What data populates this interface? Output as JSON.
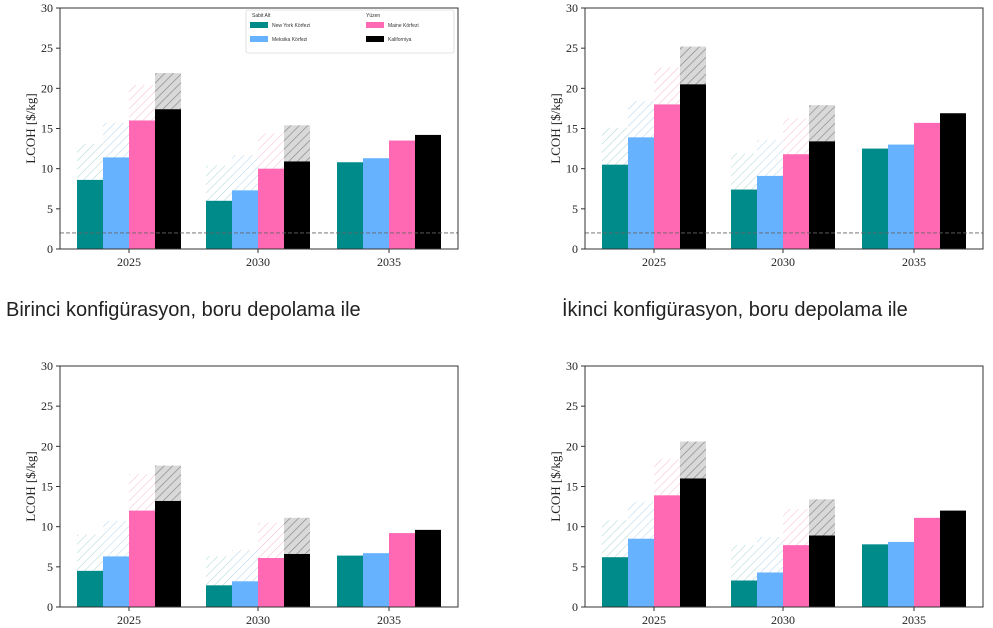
{
  "captions": [
    "Birinci konfigürasyon, boru depolama ile",
    "İkinci konfigürasyon, boru depolama ile"
  ],
  "colors": {
    "new_york": "#008b8b",
    "meksika": "#66b2ff",
    "maine": "#ff69b4",
    "kaliforniya": "#000000",
    "hatch_new_york": "#9fcfcf",
    "hatch_meksika": "#a9cfee",
    "hatch_maine": "#f6b3d0",
    "hatch_kaliforniya": "#8c8c8c",
    "target_line": "#666666"
  },
  "chart_data": [
    {
      "type": "bar",
      "panel": "top-left",
      "categories": [
        "2025",
        "2030",
        "2035"
      ],
      "ylabel": "LCOH [$/kg]",
      "ylim": [
        0,
        30
      ],
      "yticks": [
        "0",
        "5",
        "10",
        "15",
        "20",
        "25",
        "30"
      ],
      "reference_line": 2,
      "legend": {
        "placement": "top-right",
        "group_titles": [
          "Sabit Alt",
          "Yüzen"
        ],
        "entries": [
          "New York Körfezi",
          "Meksika Körfezi",
          "Maine Körfezi",
          "Kaliforniya"
        ]
      },
      "series": [
        {
          "name": "New York Körfezi",
          "values": [
            8.6,
            6.0,
            10.8
          ],
          "upper": [
            13.1,
            10.4,
            null
          ]
        },
        {
          "name": "Meksika Körfezi",
          "values": [
            11.4,
            7.3,
            11.3
          ],
          "upper": [
            15.7,
            11.7,
            null
          ]
        },
        {
          "name": "Maine Körfezi",
          "values": [
            16.0,
            10.0,
            13.5
          ],
          "upper": [
            20.4,
            14.4,
            null
          ]
        },
        {
          "name": "Kaliforniya",
          "values": [
            17.4,
            10.9,
            14.2
          ],
          "upper": [
            21.9,
            15.4,
            null
          ]
        }
      ]
    },
    {
      "type": "bar",
      "panel": "top-right",
      "categories": [
        "2025",
        "2030",
        "2035"
      ],
      "ylabel": "LCOH [$/kg]",
      "ylim": [
        0,
        30
      ],
      "yticks": [
        "0",
        "5",
        "10",
        "15",
        "20",
        "25",
        "30"
      ],
      "reference_line": 2,
      "series": [
        {
          "name": "New York Körfezi",
          "values": [
            10.5,
            7.4,
            12.5
          ],
          "upper": [
            15.1,
            11.9,
            null
          ]
        },
        {
          "name": "Meksika Körfezi",
          "values": [
            13.9,
            9.1,
            13.0
          ],
          "upper": [
            18.4,
            13.6,
            null
          ]
        },
        {
          "name": "Maine Körfezi",
          "values": [
            18.0,
            11.8,
            15.7
          ],
          "upper": [
            22.6,
            16.3,
            null
          ]
        },
        {
          "name": "Kaliforniya",
          "values": [
            20.5,
            13.4,
            16.9
          ],
          "upper": [
            25.2,
            17.9,
            null
          ]
        }
      ]
    },
    {
      "type": "bar",
      "panel": "bottom-left",
      "categories": [
        "2025",
        "2030",
        "2035"
      ],
      "ylabel": "LCOH [$/kg]",
      "ylim": [
        0,
        30
      ],
      "yticks": [
        "0",
        "5",
        "10",
        "15",
        "20",
        "25",
        "30"
      ],
      "series": [
        {
          "name": "New York Körfezi",
          "values": [
            4.5,
            2.7,
            6.4
          ],
          "upper": [
            9.0,
            6.3,
            null
          ]
        },
        {
          "name": "Meksika Körfezi",
          "values": [
            6.3,
            3.2,
            6.7
          ],
          "upper": [
            10.7,
            7.1,
            null
          ]
        },
        {
          "name": "Maine Körfezi",
          "values": [
            12.0,
            6.1,
            9.2
          ],
          "upper": [
            16.5,
            10.5,
            null
          ]
        },
        {
          "name": "Kaliforniya",
          "values": [
            13.2,
            6.6,
            9.6
          ],
          "upper": [
            17.6,
            11.1,
            null
          ]
        }
      ]
    },
    {
      "type": "bar",
      "panel": "bottom-right",
      "categories": [
        "2025",
        "2030",
        "2035"
      ],
      "ylabel": "LCOH [$/kg]",
      "ylim": [
        0,
        30
      ],
      "yticks": [
        "0",
        "5",
        "10",
        "15",
        "20",
        "25",
        "30"
      ],
      "series": [
        {
          "name": "New York Körfezi",
          "values": [
            6.2,
            3.3,
            7.8
          ],
          "upper": [
            10.8,
            7.7,
            null
          ]
        },
        {
          "name": "Meksika Körfezi",
          "values": [
            8.5,
            4.3,
            8.1
          ],
          "upper": [
            13.1,
            8.7,
            null
          ]
        },
        {
          "name": "Maine Körfezi",
          "values": [
            13.9,
            7.7,
            11.1
          ],
          "upper": [
            18.4,
            12.2,
            null
          ]
        },
        {
          "name": "Kaliforniya",
          "values": [
            16.0,
            8.9,
            12.0
          ],
          "upper": [
            20.6,
            13.4,
            null
          ]
        }
      ]
    }
  ]
}
